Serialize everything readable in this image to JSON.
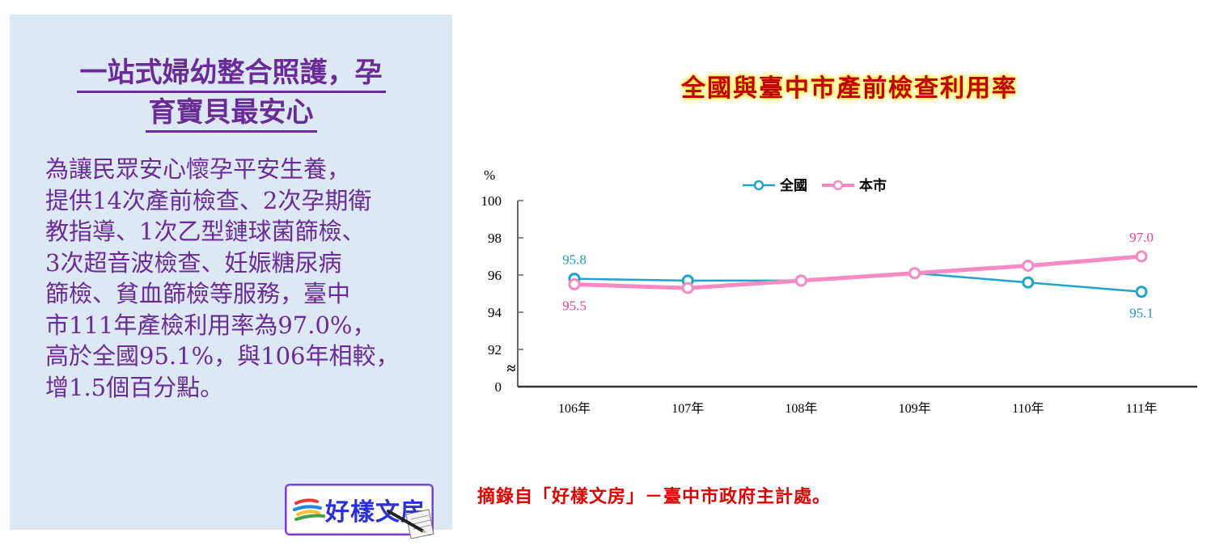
{
  "panel": {
    "title_lines": [
      "一站式婦幼整合照護，孕",
      "育寶貝最安心"
    ],
    "body_lines": [
      "為讓民眾安心懷孕平安生養，",
      "提供14次產前檢查、2次孕期衛",
      "教指導、1次乙型鏈球菌篩檢、",
      "3次超音波檢查、妊娠糖尿病",
      "篩檢、貧血篩檢等服務，臺中",
      "市111年產檢利用率為97.0%，",
      "高於全國95.1%，與106年相較，",
      "增1.5個百分點。"
    ],
    "logo_text": "好樣文房",
    "colors": {
      "background": "#dde8f5",
      "text": "#6a2a98"
    }
  },
  "source_note": "摘錄自「好樣文房」－臺中市政府主計處。",
  "chart_data": {
    "type": "line",
    "title": "全國與臺中市產前檢查利用率",
    "ylabel": "%",
    "xlabel": "",
    "categories": [
      "106年",
      "107年",
      "108年",
      "109年",
      "110年",
      "111年"
    ],
    "yticks": [
      "100",
      "98",
      "96",
      "94",
      "92",
      "0"
    ],
    "ylim": [
      91,
      100
    ],
    "axis_break": true,
    "grid": false,
    "legend_position": "top",
    "series": [
      {
        "name": "全國",
        "color": "#1fa3c9",
        "values": [
          95.8,
          95.7,
          95.7,
          96.1,
          95.6,
          95.1
        ]
      },
      {
        "name": "本市",
        "color": "#f78ac3",
        "values": [
          95.5,
          95.3,
          95.7,
          96.1,
          96.5,
          97.0
        ]
      }
    ],
    "annotations": [
      {
        "series": "全國",
        "x": "106年",
        "label": "95.8",
        "color": "#1a9bbf"
      },
      {
        "series": "本市",
        "x": "106年",
        "label": "95.5",
        "color": "#e8419a"
      },
      {
        "series": "本市",
        "x": "111年",
        "label": "97.0",
        "color": "#e8419a"
      },
      {
        "series": "全國",
        "x": "111年",
        "label": "95.1",
        "color": "#1a9bbf"
      }
    ]
  }
}
